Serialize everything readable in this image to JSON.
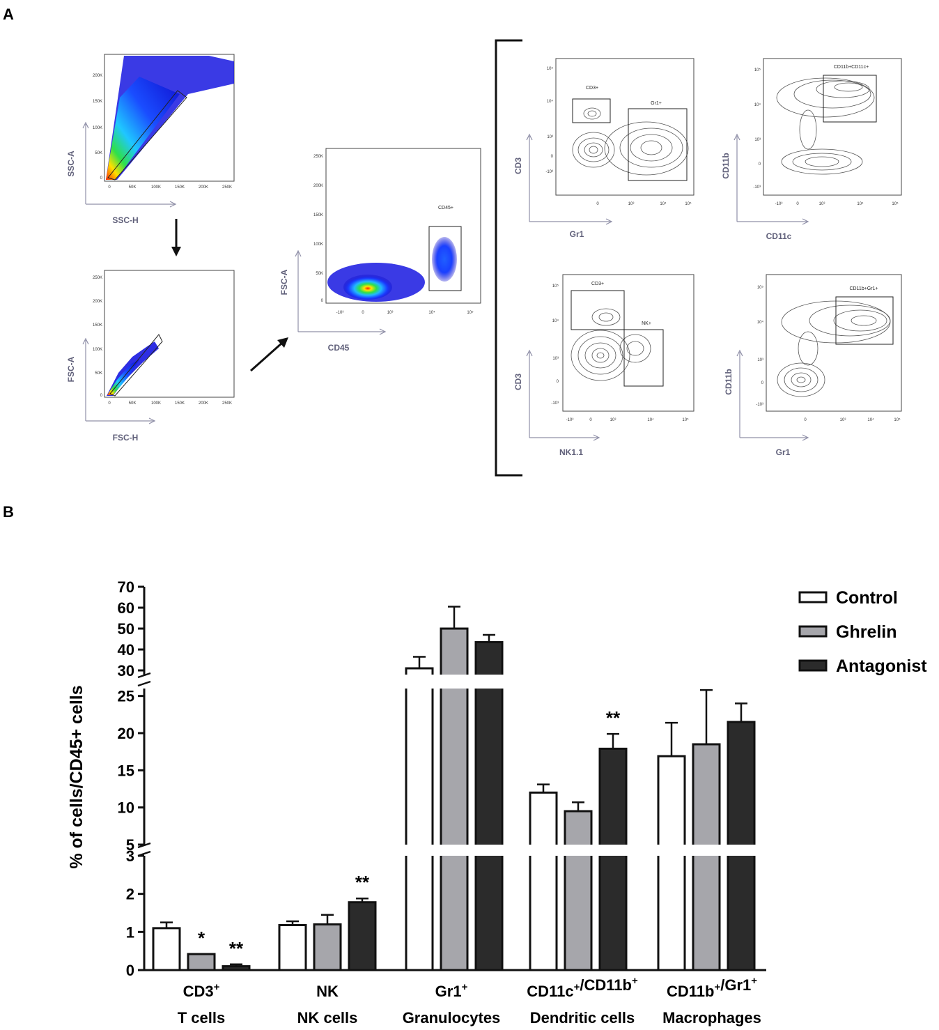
{
  "panels": {
    "a": "A",
    "b": "B"
  },
  "flow_plots": [
    {
      "id": "ssc",
      "x_label": "SSC-H",
      "y_label": "SSC-A",
      "x_ticks": [
        "0",
        "50K",
        "100K",
        "150K",
        "200K",
        "250K"
      ],
      "y_ticks": [
        "0",
        "50K",
        "100K",
        "150K",
        "200K"
      ],
      "gate": ""
    },
    {
      "id": "fsc",
      "x_label": "FSC-H",
      "y_label": "FSC-A",
      "x_ticks": [
        "0",
        "50K",
        "100K",
        "150K",
        "200K",
        "250K"
      ],
      "y_ticks": [
        "0",
        "50K",
        "100K",
        "150K",
        "200K",
        "250K"
      ],
      "gate": ""
    },
    {
      "id": "cd45",
      "x_label": "CD45",
      "y_label": "FSC-A",
      "x_ticks": [
        "-10³",
        "0",
        "10³",
        "10⁴",
        "10⁵"
      ],
      "y_ticks": [
        "0",
        "50K",
        "100K",
        "150K",
        "200K",
        "250K"
      ],
      "gate": "CD45+"
    },
    {
      "id": "cd3gr1",
      "x_label": "Gr1",
      "y_label": "CD3",
      "x_ticks": [
        "0",
        "10³",
        "10⁴",
        "10⁵"
      ],
      "y_ticks": [
        "-10³",
        "0",
        "10³",
        "10⁴",
        "10⁵"
      ],
      "gates": [
        "CD3+",
        "Gr1+"
      ]
    },
    {
      "id": "cd11bcd11c",
      "x_label": "CD11c",
      "y_label": "CD11b",
      "x_ticks": [
        "-10³",
        "0",
        "10³",
        "10⁴",
        "10⁵"
      ],
      "y_ticks": [
        "-10³",
        "0",
        "10³",
        "10⁴",
        "10⁵"
      ],
      "gates": [
        "CD11b+CD11c+"
      ]
    },
    {
      "id": "cd3nk",
      "x_label": "NK1.1",
      "y_label": "CD3",
      "x_ticks": [
        "-10³",
        "0",
        "10³",
        "10⁴",
        "10⁵"
      ],
      "y_ticks": [
        "-10³",
        "0",
        "10³",
        "10⁴",
        "10⁵"
      ],
      "gates": [
        "CD3+",
        "NK+"
      ]
    },
    {
      "id": "cd11bgr1",
      "x_label": "Gr1",
      "y_label": "CD11b",
      "x_ticks": [
        "0",
        "10³",
        "10⁴",
        "10⁵"
      ],
      "y_ticks": [
        "-10³",
        "0",
        "10³",
        "10⁴",
        "10⁵"
      ],
      "gates": [
        "CD11b+Gr1+"
      ]
    }
  ],
  "chart_data": {
    "type": "bar",
    "title": "",
    "ylabel": "% of cells/CD45+ cells",
    "xlabel": "",
    "y_segments": [
      {
        "range": [
          0,
          3
        ],
        "ticks": [
          "0",
          "1",
          "2",
          "3"
        ]
      },
      {
        "range": [
          5,
          26
        ],
        "ticks": [
          "5",
          "10",
          "15",
          "20",
          "25"
        ]
      },
      {
        "range": [
          28,
          70
        ],
        "ticks": [
          "30",
          "40",
          "50",
          "60",
          "70"
        ]
      }
    ],
    "categories": [
      {
        "top": "CD3",
        "sup": "+",
        "top2": "",
        "sup2": "",
        "bottom": "T cells"
      },
      {
        "top": "NK",
        "sup": "",
        "top2": "",
        "sup2": "",
        "bottom": "NK cells"
      },
      {
        "top": "Gr1",
        "sup": "+",
        "top2": "",
        "sup2": "",
        "bottom": "Granulocytes"
      },
      {
        "top": "CD11c",
        "sup": "+",
        "top2": "/CD11b",
        "sup2": "+",
        "bottom": "Dendritic cells"
      },
      {
        "top": "CD11b",
        "sup": "+",
        "top2": "/Gr1",
        "sup2": "+",
        "bottom": "Macrophages"
      }
    ],
    "series": [
      {
        "name": "Control",
        "color": "#ffffff",
        "values": [
          1.1,
          1.18,
          31,
          12.0,
          16.9
        ],
        "errors": [
          0.15,
          0.1,
          5.5,
          1.1,
          4.5
        ]
      },
      {
        "name": "Ghrelin",
        "color": "#a6a6ab",
        "values": [
          0.42,
          1.2,
          50,
          9.5,
          18.5
        ],
        "errors": [
          0,
          0.25,
          10.5,
          1.2,
          7.3
        ]
      },
      {
        "name": "Antagonist",
        "color": "#2b2b2b",
        "values": [
          0.1,
          1.78,
          43.5,
          17.9,
          21.5
        ],
        "errors": [
          0.05,
          0.1,
          3.5,
          2.0,
          2.5
        ]
      }
    ],
    "annotations": [
      {
        "category": 0,
        "series": 1,
        "text": "*"
      },
      {
        "category": 0,
        "series": 2,
        "text": "**"
      },
      {
        "category": 1,
        "series": 2,
        "text": "**"
      },
      {
        "category": 3,
        "series": 2,
        "text": "**"
      }
    ]
  }
}
